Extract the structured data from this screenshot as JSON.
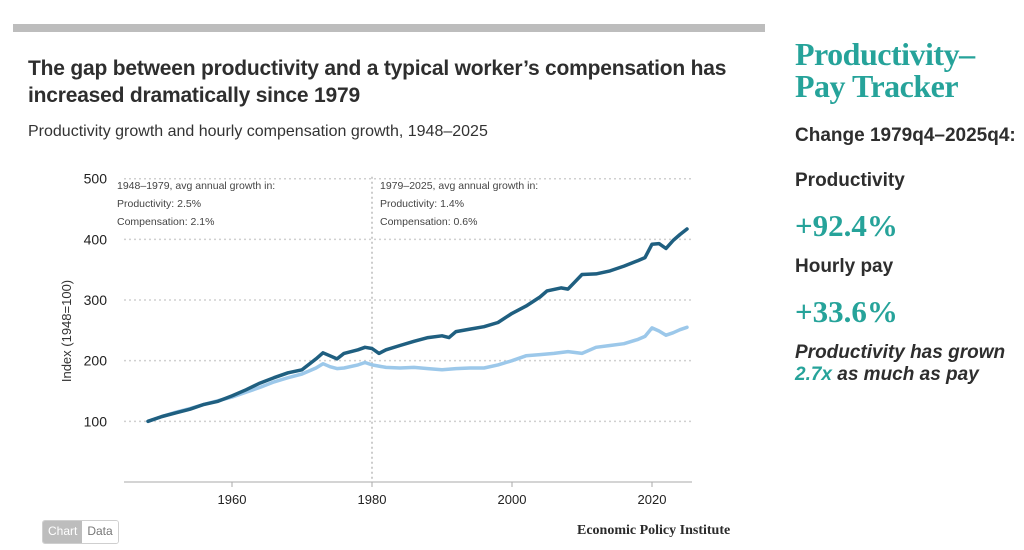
{
  "header": {
    "title": "The gap between productivity and a typical worker’s compensation has increased dramatically since 1979",
    "subtitle": "Productivity growth and hourly compensation growth, 1948–2025"
  },
  "sidebar": {
    "title_line1": "Productivity–",
    "title_line2": "Pay Tracker",
    "change_label": "Change 1979q4–2025q4:",
    "productivity_label": "Productivity",
    "productivity_value": "+92.4%",
    "pay_label": "Hourly pay",
    "pay_value": "+33.6%",
    "note_before": "Productivity has grown ",
    "note_highlight": "2.7x",
    "note_after": " as much as pay"
  },
  "footer": {
    "toggle_chart": "Chart",
    "toggle_data": "Data",
    "source": "Economic Policy Institute"
  },
  "colors": {
    "productivity": "#1f5f80",
    "compensation": "#9cc8ea",
    "accent": "#26a39a"
  },
  "chart_data": {
    "type": "line",
    "title": "The gap between productivity and a typical worker’s compensation has increased dramatically since 1979",
    "subtitle": "Productivity growth and hourly compensation growth, 1948–2025",
    "xlabel": "",
    "ylabel": "Index (1948=100)",
    "xlim": [
      1945,
      2030
    ],
    "ylim": [
      0,
      500
    ],
    "xticks": [
      1960,
      1980,
      2000,
      2020
    ],
    "yticks": [
      100,
      200,
      300,
      400,
      500
    ],
    "grid": true,
    "divider_year": 1980,
    "annotations": [
      {
        "lines": [
          "1948–1979, avg annual growth in:",
          "Productivity: 2.5%",
          "Compensation: 2.1%"
        ],
        "position": "top-left"
      },
      {
        "lines": [
          "1979–2025, avg annual growth in:",
          "Productivity: 1.4%",
          "Compensation: 0.6%"
        ],
        "position": "top-center"
      }
    ],
    "series": [
      {
        "name": "Productivity",
        "x": [
          1948,
          1950,
          1952,
          1954,
          1956,
          1958,
          1960,
          1962,
          1964,
          1966,
          1968,
          1970,
          1972,
          1973,
          1974,
          1975,
          1976,
          1978,
          1979,
          1980,
          1981,
          1982,
          1984,
          1986,
          1988,
          1990,
          1991,
          1992,
          1994,
          1996,
          1998,
          2000,
          2002,
          2004,
          2005,
          2007,
          2008,
          2009,
          2010,
          2012,
          2014,
          2016,
          2018,
          2019,
          2020,
          2021,
          2022,
          2023,
          2024,
          2025
        ],
        "values": [
          100,
          108,
          114,
          120,
          128,
          133,
          142,
          152,
          163,
          172,
          180,
          185,
          203,
          213,
          208,
          203,
          212,
          218,
          222,
          220,
          212,
          218,
          225,
          232,
          238,
          241,
          238,
          248,
          252,
          256,
          263,
          278,
          290,
          305,
          315,
          320,
          318,
          330,
          342,
          343,
          348,
          356,
          365,
          370,
          392,
          393,
          385,
          398,
          408,
          417
        ]
      },
      {
        "name": "Hourly compensation",
        "x": [
          1948,
          1950,
          1952,
          1954,
          1956,
          1958,
          1960,
          1962,
          1964,
          1966,
          1968,
          1970,
          1972,
          1973,
          1974,
          1975,
          1976,
          1978,
          1979,
          1980,
          1982,
          1984,
          1986,
          1988,
          1990,
          1992,
          1994,
          1996,
          1998,
          2000,
          2002,
          2004,
          2006,
          2008,
          2010,
          2012,
          2014,
          2016,
          2018,
          2019,
          2020,
          2021,
          2022,
          2023,
          2024,
          2025
        ],
        "values": [
          100,
          108,
          115,
          121,
          128,
          134,
          140,
          148,
          156,
          165,
          172,
          178,
          188,
          195,
          190,
          187,
          188,
          193,
          197,
          193,
          189,
          188,
          189,
          187,
          185,
          187,
          188,
          188,
          193,
          200,
          208,
          210,
          212,
          215,
          212,
          222,
          225,
          228,
          235,
          240,
          254,
          249,
          242,
          246,
          251,
          255
        ]
      }
    ]
  }
}
